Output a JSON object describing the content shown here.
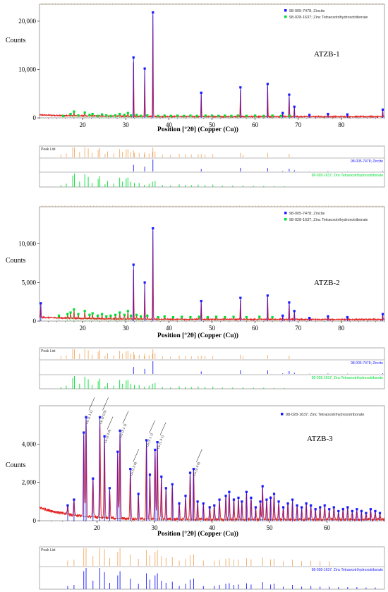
{
  "colors": {
    "zincite": "#1a1aff",
    "borate": "#00dd33",
    "fit": "#e62020",
    "background": "#8a6a2a",
    "peaklist_ref": "#f0a050"
  },
  "common": {
    "xlabel": "Position [°2θ] (Copper (Cu))",
    "ylabel": "Counts",
    "peak_list_label": "Peak List",
    "legend_zincite": "98-005-7478; Zincite",
    "legend_borate": "98-028-1637; Zinc Tetraoxotrihydroxotriborate"
  },
  "chart_data": [
    {
      "type": "line",
      "sample": "ATZB-1",
      "xlabel": "Position [°2θ] (Copper (Cu))",
      "ylabel": "Counts",
      "xlim": [
        10,
        90
      ],
      "ylim": [
        0,
        23500
      ],
      "xticks": [
        20,
        30,
        40,
        50,
        60,
        70,
        80
      ],
      "yticks": [
        0,
        10000,
        20000
      ],
      "ytick_labels": [
        "0",
        "10,000",
        "20,000"
      ],
      "legend": [
        "98-005-7478; Zincite",
        "98-028-1637; Zinc Tetraoxotrihydroxotriborate"
      ],
      "legend_position": "top-right",
      "series": [
        {
          "name": "98-005-7478; Zincite",
          "x": [
            31.8,
            34.4,
            36.3,
            47.5,
            56.6,
            62.9,
            66.4,
            67.9,
            69.1,
            72.6,
            76.9,
            81.4,
            89.6
          ],
          "y": [
            12500,
            10200,
            21800,
            5200,
            6300,
            7000,
            1000,
            4800,
            2300,
            600,
            800,
            700,
            1700
          ]
        },
        {
          "name": "98-028-1637; Zinc Tetraoxotrihydroxotriborate",
          "x": [
            15.5,
            17.2,
            18.0,
            19.0,
            20.5,
            21.6,
            22.3,
            23.5,
            24.5,
            25.5,
            26.5,
            27.6,
            28.6,
            29.7,
            30.5,
            31.2,
            32.5,
            33.5,
            35.0,
            37.5,
            39.0,
            40.5,
            42.0,
            43.5,
            45.0,
            46.5,
            48.5,
            50.0,
            51.5,
            53.0,
            54.5,
            56.0,
            58.0,
            60.0,
            62.0,
            64.0,
            66.0,
            68.0
          ],
          "y": [
            400,
            800,
            1300,
            500,
            1100,
            600,
            800,
            400,
            700,
            500,
            400,
            500,
            800,
            600,
            1000,
            500,
            600,
            400,
            500,
            400,
            450,
            400,
            450,
            400,
            450,
            400,
            450,
            450,
            400,
            450,
            400,
            450,
            400,
            450,
            400,
            450,
            400,
            400
          ]
        }
      ]
    },
    {
      "type": "line",
      "sample": "ATZB-2",
      "xlabel": "Position [°2θ] (Copper (Cu))",
      "ylabel": "Counts",
      "xlim": [
        10,
        90
      ],
      "ylim": [
        0,
        14800
      ],
      "xticks": [
        20,
        30,
        40,
        50,
        60,
        70,
        80
      ],
      "yticks": [
        0,
        5000,
        10000
      ],
      "ytick_labels": [
        "0",
        "5,000",
        "10,000"
      ],
      "legend": [
        "98-005-7478; Zincite",
        "98-028-1637; Zinc Tetraoxotrihydroxotriborate"
      ],
      "legend_position": "top-right",
      "series": [
        {
          "name": "98-005-7478; Zincite",
          "x": [
            10.3,
            31.8,
            34.4,
            36.3,
            47.5,
            56.6,
            62.9,
            66.4,
            67.9,
            69.1,
            72.6,
            76.9,
            81.4,
            89.6
          ],
          "y": [
            2300,
            7300,
            5000,
            12000,
            2600,
            3000,
            3300,
            700,
            2400,
            1300,
            400,
            600,
            500,
            900
          ]
        },
        {
          "name": "98-028-1637; Zinc Tetraoxotrihydroxotriborate",
          "x": [
            14.5,
            16.5,
            17.2,
            18.0,
            19.0,
            20.5,
            21.6,
            22.3,
            23.5,
            24.5,
            25.5,
            26.5,
            27.6,
            28.6,
            29.7,
            30.5,
            31.2,
            32.5,
            33.5,
            35.0,
            37.5,
            39.0,
            41.0,
            43.0,
            45.0,
            47.0,
            49.0,
            51.0,
            53.0,
            55.0,
            58.0,
            61.0,
            64.0
          ],
          "y": [
            700,
            900,
            1100,
            1500,
            900,
            1300,
            800,
            1000,
            700,
            900,
            600,
            700,
            800,
            1100,
            800,
            1300,
            700,
            800,
            600,
            700,
            500,
            600,
            500,
            550,
            500,
            550,
            500,
            550,
            500,
            550,
            500,
            550,
            500
          ]
        }
      ]
    },
    {
      "type": "line",
      "sample": "ATZB-3",
      "xlabel": "Position [°2θ] (Copper (Cu))",
      "ylabel": "Counts",
      "xlim": [
        10,
        70
      ],
      "ylim": [
        0,
        6000
      ],
      "xticks": [
        20,
        30,
        40,
        50,
        60
      ],
      "yticks": [
        0,
        2000,
        4000
      ],
      "ytick_labels": [
        "0",
        "2,000",
        "4,000"
      ],
      "legend": [
        "98-028-1637; Zinc Tetraoxotrihydroxotriborate"
      ],
      "legend_position": "top-right",
      "series": [
        {
          "name": "98-028-1637; Zinc Tetraoxotrihydroxotriborate",
          "x": [
            14.9,
            16.0,
            17.7,
            18.1,
            19.3,
            20.5,
            21.3,
            22.2,
            23.6,
            24.0,
            25.8,
            27.2,
            28.6,
            29.2,
            30.1,
            30.5,
            31.2,
            32.0,
            33.1,
            34.3,
            35.4,
            36.2,
            36.8,
            37.5,
            38.5,
            39.6,
            40.4,
            41.3,
            42.4,
            43.0,
            43.8,
            44.6,
            45.2,
            46.0,
            46.8,
            47.6,
            48.4,
            48.8,
            49.5,
            50.2,
            50.8,
            51.6,
            52.4,
            53.2,
            54.0,
            54.8,
            55.6,
            56.4,
            57.2,
            58.0,
            58.8,
            59.6,
            60.4,
            61.2,
            62.0,
            62.8,
            63.6,
            64.4,
            65.2,
            66.0,
            66.8,
            67.6,
            68.4,
            69.2
          ],
          "y": [
            800,
            1100,
            4600,
            5400,
            2200,
            5400,
            4400,
            1700,
            3600,
            4700,
            2700,
            1400,
            4200,
            2400,
            3700,
            4100,
            2300,
            1700,
            1900,
            900,
            1300,
            2500,
            2700,
            1000,
            900,
            700,
            800,
            1100,
            1300,
            1500,
            1100,
            1200,
            1000,
            1500,
            1200,
            700,
            1000,
            1800,
            1100,
            1200,
            1400,
            1000,
            700,
            900,
            1100,
            800,
            700,
            900,
            800,
            600,
            700,
            800,
            600,
            700,
            500,
            600,
            700,
            500,
            600,
            500,
            400,
            600,
            500,
            400
          ]
        }
      ],
      "annotations": [
        "Cu (1 1 1)",
        "Cu (2 0 0)",
        "Cu (2 2 0)",
        "Cu (3 1 1)",
        "Cu (1 3 0)",
        "Cu (2 1 1)",
        "Cu (1 3 1)",
        "Cu (2 4 0)"
      ]
    }
  ],
  "peak_lists": [
    {
      "label": "Peak List",
      "xlim": [
        10,
        90
      ],
      "refs": [
        {
          "name": "98-005-7478; Zincite",
          "color": "#1a1aff",
          "x": [
            31.8,
            34.4,
            36.3,
            47.5,
            56.6,
            62.9,
            66.4,
            67.9,
            69.1,
            72.6,
            76.9,
            81.4,
            89.6
          ],
          "h": [
            0.55,
            0.4,
            1.0,
            0.2,
            0.3,
            0.28,
            0.05,
            0.22,
            0.1,
            0.02,
            0.04,
            0.02,
            0.05
          ]
        },
        {
          "name": "98-028-1637; Zinc Tetraoxotrihydroxotriborate",
          "color": "#00dd33",
          "x": [
            15.0,
            16.2,
            17.7,
            18.1,
            19.3,
            20.5,
            21.3,
            22.2,
            23.6,
            24.0,
            25.2,
            25.8,
            27.2,
            28.6,
            29.2,
            30.1,
            30.5,
            31.2,
            32.0,
            33.1,
            34.3,
            35.4,
            36.2,
            36.8,
            38.5,
            40.4,
            42.4,
            43.8,
            45.2,
            46.8,
            48.4,
            50.2,
            52.4,
            54.8,
            57.2,
            59.6,
            62.0,
            64.4,
            66.8
          ],
          "h": [
            0.15,
            0.25,
            0.85,
            1.0,
            0.4,
            0.95,
            0.75,
            0.3,
            0.6,
            0.8,
            0.2,
            0.45,
            0.25,
            0.7,
            0.4,
            0.65,
            0.7,
            0.4,
            0.3,
            0.3,
            0.15,
            0.25,
            0.4,
            0.45,
            0.15,
            0.12,
            0.2,
            0.15,
            0.15,
            0.18,
            0.15,
            0.18,
            0.1,
            0.1,
            0.12,
            0.08,
            0.08,
            0.06,
            0.05
          ]
        }
      ]
    },
    {
      "label": "Peak List",
      "xlim": [
        10,
        90
      ],
      "refs": [
        {
          "name": "98-005-7478; Zincite",
          "color": "#1a1aff",
          "x": [
            31.8,
            34.4,
            36.3,
            47.5,
            56.6,
            62.9,
            66.4,
            67.9,
            69.1,
            72.6,
            76.9,
            81.4,
            89.6
          ],
          "h": [
            0.55,
            0.4,
            1.0,
            0.2,
            0.3,
            0.28,
            0.05,
            0.22,
            0.1,
            0.02,
            0.04,
            0.02,
            0.05
          ]
        },
        {
          "name": "98-028-1637; Zinc Tetraoxotrihydroxotriborate",
          "color": "#00dd33",
          "x": [
            15.0,
            16.2,
            17.7,
            18.1,
            19.3,
            20.5,
            21.3,
            22.2,
            23.6,
            24.0,
            25.2,
            25.8,
            27.2,
            28.6,
            29.2,
            30.1,
            30.5,
            31.2,
            32.0,
            33.1,
            34.3,
            35.4,
            36.2,
            36.8,
            38.5,
            40.4,
            42.4,
            43.8,
            45.2,
            46.8,
            48.4,
            50.2,
            52.4,
            54.8,
            57.2,
            59.6,
            62.0,
            64.4,
            66.8
          ],
          "h": [
            0.15,
            0.25,
            0.85,
            1.0,
            0.4,
            0.95,
            0.75,
            0.3,
            0.6,
            0.8,
            0.2,
            0.45,
            0.25,
            0.7,
            0.4,
            0.65,
            0.7,
            0.4,
            0.3,
            0.3,
            0.15,
            0.25,
            0.4,
            0.45,
            0.15,
            0.12,
            0.2,
            0.15,
            0.15,
            0.18,
            0.15,
            0.18,
            0.1,
            0.1,
            0.12,
            0.08,
            0.08,
            0.06,
            0.05
          ]
        }
      ]
    },
    {
      "label": "Peak List",
      "xlim": [
        10,
        70
      ],
      "refs": [
        {
          "name": "98-028-1637; Zinc Tetraoxotrihydroxotriborate",
          "color": "#1a1aff",
          "x": [
            14.9,
            16.0,
            17.7,
            18.1,
            19.3,
            20.5,
            21.3,
            22.2,
            23.6,
            24.0,
            25.8,
            27.2,
            28.6,
            29.2,
            30.1,
            30.5,
            31.2,
            32.0,
            33.1,
            34.3,
            35.4,
            36.2,
            36.8,
            38.5,
            40.4,
            41.3,
            42.4,
            43.0,
            43.8,
            44.6,
            46.0,
            46.8,
            48.8,
            50.2,
            50.8,
            52.4,
            54.0,
            55.6,
            57.2,
            58.8,
            60.4,
            62.0,
            63.6,
            65.2,
            66.8,
            68.4
          ],
          "h": [
            0.15,
            0.2,
            0.85,
            1.0,
            0.4,
            1.0,
            0.8,
            0.3,
            0.65,
            0.85,
            0.5,
            0.25,
            0.75,
            0.45,
            0.65,
            0.75,
            0.4,
            0.3,
            0.35,
            0.15,
            0.25,
            0.45,
            0.5,
            0.15,
            0.15,
            0.2,
            0.25,
            0.28,
            0.2,
            0.22,
            0.28,
            0.22,
            0.33,
            0.22,
            0.26,
            0.12,
            0.2,
            0.12,
            0.15,
            0.12,
            0.12,
            0.1,
            0.1,
            0.1,
            0.08,
            0.08
          ]
        }
      ]
    }
  ]
}
